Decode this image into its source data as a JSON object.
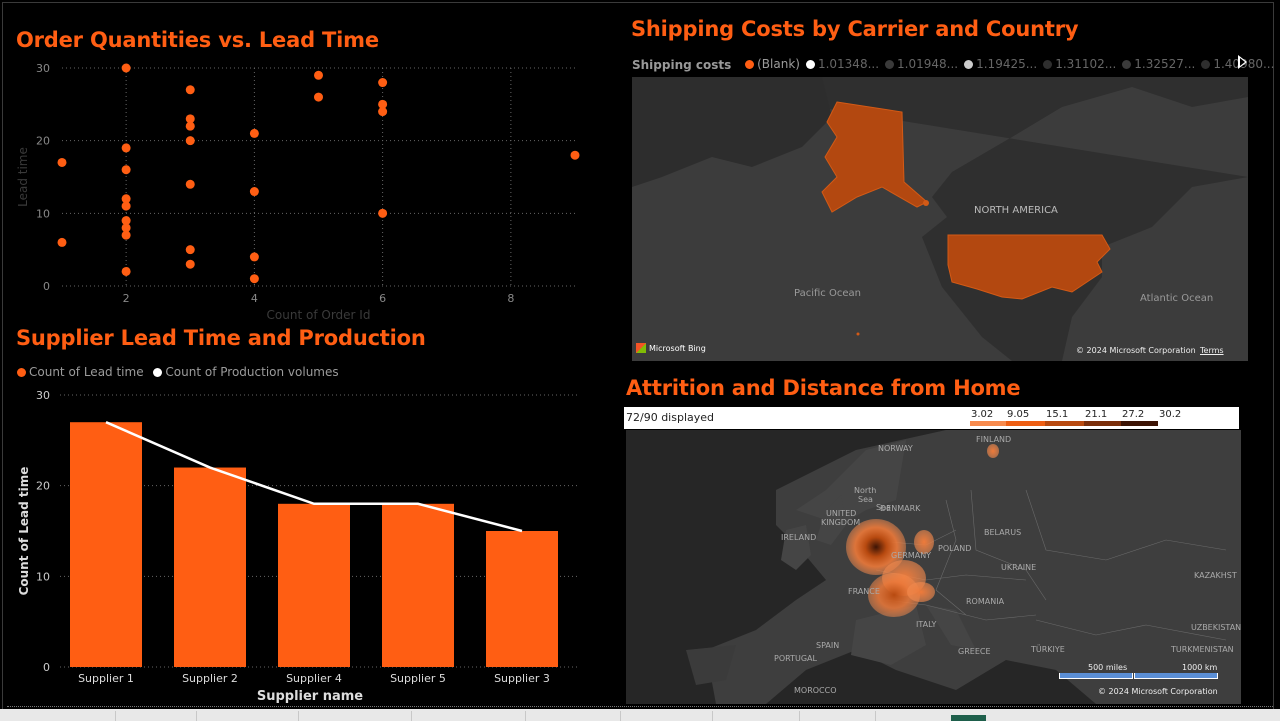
{
  "scatter": {
    "title": "Order Quantities vs. Lead Time",
    "xlabel": "Count of Order Id",
    "ylabel": "Lead time"
  },
  "bars": {
    "title": "Supplier Lead Time and Production",
    "xlabel": "Supplier name",
    "ylabel": "Count of Lead time",
    "legend": [
      "Count of Lead time",
      "Count of Production volumes"
    ]
  },
  "shipping": {
    "title": "Shipping Costs by Carrier and Country",
    "legend_title": "Shipping costs",
    "legend_items": [
      "(Blank)",
      "1.01348...",
      "1.01948...",
      "1.19425...",
      "1.31102...",
      "1.32527...",
      "1.40980..."
    ],
    "labels": {
      "north_america": "NORTH AMERICA",
      "pacific": "Pacific Ocean",
      "atlantic": "Atlantic Ocean"
    },
    "bing": "Microsoft Bing",
    "copyright": "© 2024 Microsoft Corporation",
    "terms": "Terms"
  },
  "attrition": {
    "title": "Attrition and Distance from Home",
    "displayed": "72/90 displayed",
    "scale_values": [
      "3.02",
      "9.05",
      "15.1",
      "21.1",
      "27.2",
      "30.2"
    ],
    "scale_colors": [
      "#fbb58e",
      "#f78a4d",
      "#ee5f14",
      "#b84a10",
      "#7a2e0b",
      "#3d1405"
    ],
    "countries": {
      "norway": "NORWAY",
      "finland": "FINLAND",
      "north_sea1": "North",
      "north_sea2": "Sea",
      "denmark": "DENMARK",
      "uk1": "UNITED",
      "uk2": "KINGDOM",
      "ireland": "IRELAND",
      "germany": "GERMANY",
      "poland": "POLAND",
      "belarus": "BELARUS",
      "ukraine": "UKRAINE",
      "kazakhstan": "KAZAKHST",
      "france": "FRANCE",
      "romania": "ROMANIA",
      "italy": "ITALY",
      "spain": "SPAIN",
      "portugal": "PORTUGAL",
      "greece": "GREECE",
      "turkiye": "TÜRKIYE",
      "uzbekistan": "UZBEKISTAN",
      "turkmenistan": "TURKMENISTAN",
      "morocco": "MOROCCO",
      "sea": "Sea"
    },
    "scale_miles": "500 miles",
    "scale_km": "1000 km",
    "copyright": "© 2024 Microsoft Corporation"
  },
  "colors": {
    "accent": "#ff5e13",
    "line": "#ffffff"
  },
  "chart_data": [
    {
      "type": "scatter",
      "title": "Order Quantities vs. Lead Time",
      "xlabel": "Count of Order Id",
      "ylabel": "Lead time",
      "xlim": [
        1,
        9
      ],
      "ylim": [
        0,
        30
      ],
      "x_ticks": [
        2,
        4,
        6,
        8
      ],
      "y_ticks": [
        0,
        10,
        20,
        30
      ],
      "points": [
        [
          1,
          17
        ],
        [
          1,
          6
        ],
        [
          2,
          30
        ],
        [
          2,
          19
        ],
        [
          2,
          16
        ],
        [
          2,
          12
        ],
        [
          2,
          11
        ],
        [
          2,
          9
        ],
        [
          2,
          8
        ],
        [
          2,
          7
        ],
        [
          2,
          2
        ],
        [
          3,
          27
        ],
        [
          3,
          23
        ],
        [
          3,
          22
        ],
        [
          3,
          20
        ],
        [
          3,
          14
        ],
        [
          3,
          5
        ],
        [
          3,
          3
        ],
        [
          4,
          21
        ],
        [
          4,
          13
        ],
        [
          4,
          4
        ],
        [
          4,
          1
        ],
        [
          5,
          29
        ],
        [
          5,
          26
        ],
        [
          6,
          28
        ],
        [
          6,
          25
        ],
        [
          6,
          24
        ],
        [
          6,
          10
        ],
        [
          9,
          18
        ]
      ],
      "grid": true
    },
    {
      "type": "bar",
      "title": "Supplier Lead Time and Production",
      "xlabel": "Supplier name",
      "ylabel": "Count of Lead time",
      "categories": [
        "Supplier 1",
        "Supplier 2",
        "Supplier 4",
        "Supplier 5",
        "Supplier 3"
      ],
      "ylim": [
        0,
        30
      ],
      "y_ticks": [
        0,
        10,
        20,
        30
      ],
      "series": [
        {
          "name": "Count of Lead time",
          "kind": "bar",
          "values": [
            27,
            22,
            18,
            18,
            15
          ]
        },
        {
          "name": "Count of Production volumes",
          "kind": "line",
          "values": [
            27,
            22,
            18,
            18,
            15
          ]
        }
      ],
      "legend": "top-left",
      "grid": true
    }
  ]
}
